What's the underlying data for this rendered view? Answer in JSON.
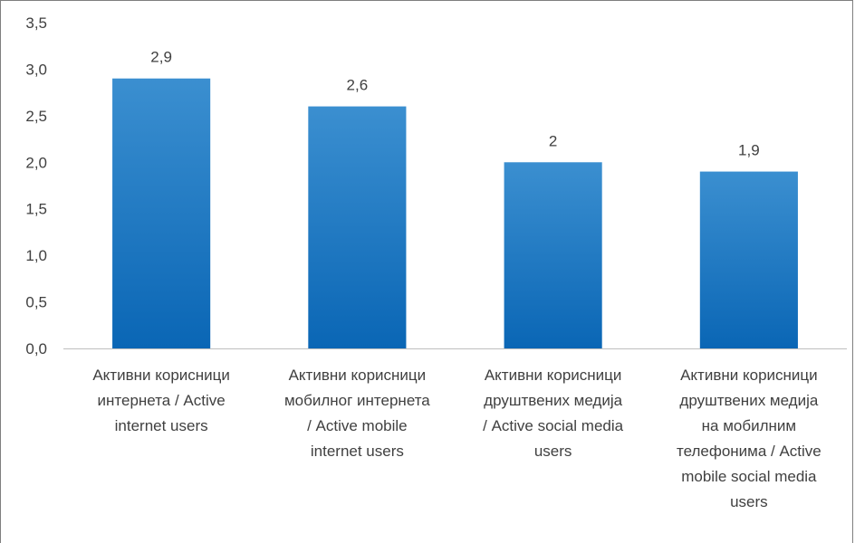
{
  "chart_data": {
    "type": "bar",
    "categories": [
      [
        "Активни корисници",
        "интернета / Active",
        "internet users"
      ],
      [
        "Активни корисници",
        "мобилног интернета",
        "/ Active mobile",
        "internet users"
      ],
      [
        "Активни корисници",
        "друштвених медија",
        "/ Active social media",
        "users"
      ],
      [
        "Активни корисници",
        "друштвених медија",
        "на мобилним",
        "телефонима / Active",
        "mobile social media",
        "users"
      ]
    ],
    "values": [
      2.9,
      2.6,
      2.0,
      1.9
    ],
    "data_labels": [
      "2,9",
      "2,6",
      "2",
      "1,9"
    ],
    "y_ticks": [
      "0,0",
      "0,5",
      "1,0",
      "1,5",
      "2,0",
      "2,5",
      "3,0",
      "3,5"
    ],
    "ylim": [
      0,
      3.5
    ],
    "title": "",
    "xlabel": "",
    "ylabel": "",
    "grid": false,
    "colors": {
      "bar_top": "#3b8fd0",
      "bar_bottom": "#0a66b5",
      "axis": "#bfbfbf"
    }
  }
}
